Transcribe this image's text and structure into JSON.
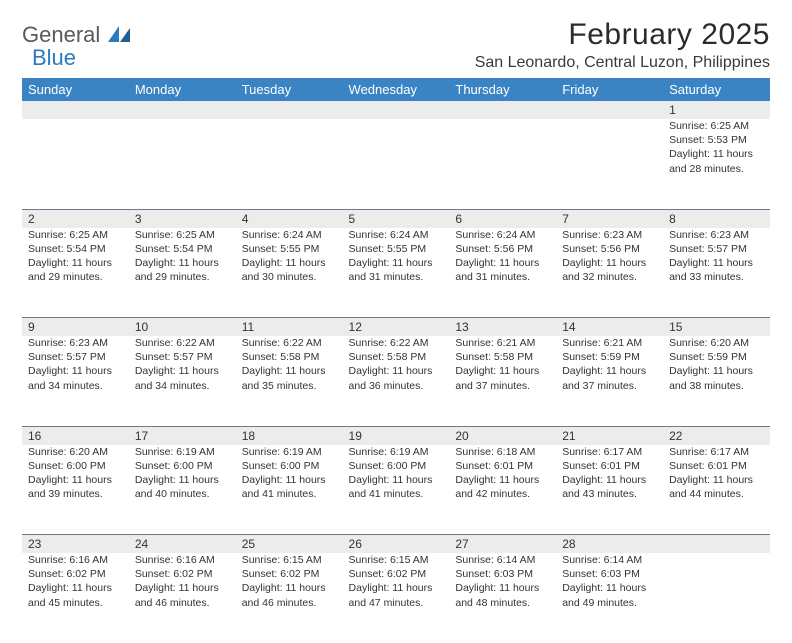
{
  "brand": {
    "word1": "General",
    "word2": "Blue"
  },
  "title": "February 2025",
  "location": "San Leonardo, Central Luzon, Philippines",
  "weekdays": [
    "Sunday",
    "Monday",
    "Tuesday",
    "Wednesday",
    "Thursday",
    "Friday",
    "Saturday"
  ],
  "colors": {
    "header_bg": "#3b84c4",
    "header_text": "#ffffff",
    "daynum_bg": "#ececec",
    "rule": "#6b7a8f",
    "brand_gray": "#5a5a5a",
    "brand_blue": "#2a7ac0"
  },
  "rows": [
    {
      "nums": [
        "",
        "",
        "",
        "",
        "",
        "",
        "1"
      ],
      "cells": [
        null,
        null,
        null,
        null,
        null,
        null,
        {
          "sunrise": "Sunrise: 6:25 AM",
          "sunset": "Sunset: 5:53 PM",
          "daylight": "Daylight: 11 hours and 28 minutes."
        }
      ]
    },
    {
      "nums": [
        "2",
        "3",
        "4",
        "5",
        "6",
        "7",
        "8"
      ],
      "cells": [
        {
          "sunrise": "Sunrise: 6:25 AM",
          "sunset": "Sunset: 5:54 PM",
          "daylight": "Daylight: 11 hours and 29 minutes."
        },
        {
          "sunrise": "Sunrise: 6:25 AM",
          "sunset": "Sunset: 5:54 PM",
          "daylight": "Daylight: 11 hours and 29 minutes."
        },
        {
          "sunrise": "Sunrise: 6:24 AM",
          "sunset": "Sunset: 5:55 PM",
          "daylight": "Daylight: 11 hours and 30 minutes."
        },
        {
          "sunrise": "Sunrise: 6:24 AM",
          "sunset": "Sunset: 5:55 PM",
          "daylight": "Daylight: 11 hours and 31 minutes."
        },
        {
          "sunrise": "Sunrise: 6:24 AM",
          "sunset": "Sunset: 5:56 PM",
          "daylight": "Daylight: 11 hours and 31 minutes."
        },
        {
          "sunrise": "Sunrise: 6:23 AM",
          "sunset": "Sunset: 5:56 PM",
          "daylight": "Daylight: 11 hours and 32 minutes."
        },
        {
          "sunrise": "Sunrise: 6:23 AM",
          "sunset": "Sunset: 5:57 PM",
          "daylight": "Daylight: 11 hours and 33 minutes."
        }
      ]
    },
    {
      "nums": [
        "9",
        "10",
        "11",
        "12",
        "13",
        "14",
        "15"
      ],
      "cells": [
        {
          "sunrise": "Sunrise: 6:23 AM",
          "sunset": "Sunset: 5:57 PM",
          "daylight": "Daylight: 11 hours and 34 minutes."
        },
        {
          "sunrise": "Sunrise: 6:22 AM",
          "sunset": "Sunset: 5:57 PM",
          "daylight": "Daylight: 11 hours and 34 minutes."
        },
        {
          "sunrise": "Sunrise: 6:22 AM",
          "sunset": "Sunset: 5:58 PM",
          "daylight": "Daylight: 11 hours and 35 minutes."
        },
        {
          "sunrise": "Sunrise: 6:22 AM",
          "sunset": "Sunset: 5:58 PM",
          "daylight": "Daylight: 11 hours and 36 minutes."
        },
        {
          "sunrise": "Sunrise: 6:21 AM",
          "sunset": "Sunset: 5:58 PM",
          "daylight": "Daylight: 11 hours and 37 minutes."
        },
        {
          "sunrise": "Sunrise: 6:21 AM",
          "sunset": "Sunset: 5:59 PM",
          "daylight": "Daylight: 11 hours and 37 minutes."
        },
        {
          "sunrise": "Sunrise: 6:20 AM",
          "sunset": "Sunset: 5:59 PM",
          "daylight": "Daylight: 11 hours and 38 minutes."
        }
      ]
    },
    {
      "nums": [
        "16",
        "17",
        "18",
        "19",
        "20",
        "21",
        "22"
      ],
      "cells": [
        {
          "sunrise": "Sunrise: 6:20 AM",
          "sunset": "Sunset: 6:00 PM",
          "daylight": "Daylight: 11 hours and 39 minutes."
        },
        {
          "sunrise": "Sunrise: 6:19 AM",
          "sunset": "Sunset: 6:00 PM",
          "daylight": "Daylight: 11 hours and 40 minutes."
        },
        {
          "sunrise": "Sunrise: 6:19 AM",
          "sunset": "Sunset: 6:00 PM",
          "daylight": "Daylight: 11 hours and 41 minutes."
        },
        {
          "sunrise": "Sunrise: 6:19 AM",
          "sunset": "Sunset: 6:00 PM",
          "daylight": "Daylight: 11 hours and 41 minutes."
        },
        {
          "sunrise": "Sunrise: 6:18 AM",
          "sunset": "Sunset: 6:01 PM",
          "daylight": "Daylight: 11 hours and 42 minutes."
        },
        {
          "sunrise": "Sunrise: 6:17 AM",
          "sunset": "Sunset: 6:01 PM",
          "daylight": "Daylight: 11 hours and 43 minutes."
        },
        {
          "sunrise": "Sunrise: 6:17 AM",
          "sunset": "Sunset: 6:01 PM",
          "daylight": "Daylight: 11 hours and 44 minutes."
        }
      ]
    },
    {
      "nums": [
        "23",
        "24",
        "25",
        "26",
        "27",
        "28",
        ""
      ],
      "cells": [
        {
          "sunrise": "Sunrise: 6:16 AM",
          "sunset": "Sunset: 6:02 PM",
          "daylight": "Daylight: 11 hours and 45 minutes."
        },
        {
          "sunrise": "Sunrise: 6:16 AM",
          "sunset": "Sunset: 6:02 PM",
          "daylight": "Daylight: 11 hours and 46 minutes."
        },
        {
          "sunrise": "Sunrise: 6:15 AM",
          "sunset": "Sunset: 6:02 PM",
          "daylight": "Daylight: 11 hours and 46 minutes."
        },
        {
          "sunrise": "Sunrise: 6:15 AM",
          "sunset": "Sunset: 6:02 PM",
          "daylight": "Daylight: 11 hours and 47 minutes."
        },
        {
          "sunrise": "Sunrise: 6:14 AM",
          "sunset": "Sunset: 6:03 PM",
          "daylight": "Daylight: 11 hours and 48 minutes."
        },
        {
          "sunrise": "Sunrise: 6:14 AM",
          "sunset": "Sunset: 6:03 PM",
          "daylight": "Daylight: 11 hours and 49 minutes."
        },
        null
      ]
    }
  ]
}
